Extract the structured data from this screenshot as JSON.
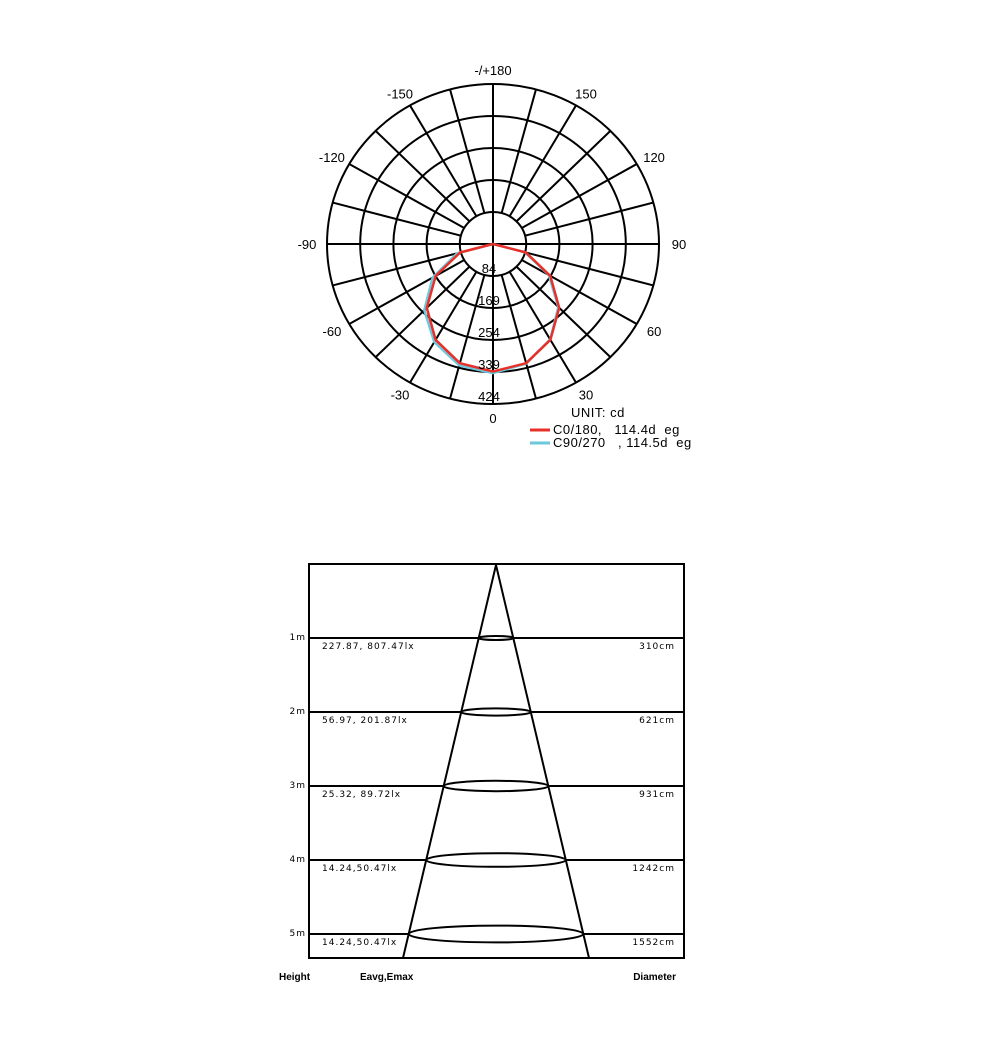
{
  "chart_data": [
    {
      "type": "polar",
      "unit_label": "UNIT:  cd",
      "angle_labels": [
        "-/+180",
        "150",
        "120",
        "90",
        "60",
        "30",
        "0",
        "-30",
        "-60",
        "-90",
        "-120",
        "-150"
      ],
      "angle_values": [
        180,
        150,
        120,
        90,
        60,
        30,
        0,
        -30,
        -60,
        -90,
        -120,
        -150
      ],
      "radial_ticks": [
        "84",
        "169",
        "254",
        "339",
        "424"
      ],
      "radial_values": [
        84,
        169,
        254,
        339,
        424
      ],
      "rmax": 424,
      "spoke_step_deg": 15,
      "series": [
        {
          "name": "C0/180,   114.4d  eg",
          "color": "#e8302a",
          "angles": [
            -90,
            -75,
            -60,
            -45,
            -30,
            -15,
            0,
            15,
            30,
            45,
            60,
            75,
            90
          ],
          "values": [
            0,
            87,
            169,
            239,
            293,
            327,
            338,
            327,
            293,
            239,
            169,
            87,
            0
          ]
        },
        {
          "name": "C90/270   , 114.5d  eg",
          "color": "#6cc8dc",
          "angles": [
            -90,
            -75,
            -60,
            -45,
            -30,
            -15,
            0,
            15,
            30,
            45,
            60,
            75,
            90
          ],
          "values": [
            0,
            95,
            178,
            248,
            300,
            333,
            342,
            328,
            292,
            236,
            165,
            84,
            0
          ]
        }
      ]
    },
    {
      "type": "table",
      "columns": [
        "Height",
        "Eavg,Emax",
        "Diameter"
      ],
      "rows": [
        {
          "height": "1m",
          "illum": "227.87, 807.47lx",
          "diameter": "310cm"
        },
        {
          "height": "2m",
          "illum": "56.97, 201.87lx",
          "diameter": "621cm"
        },
        {
          "height": "3m",
          "illum": "25.32, 89.72lx",
          "diameter": "931cm"
        },
        {
          "height": "4m",
          "illum": "14.24,50.47lx",
          "diameter": "1242cm"
        },
        {
          "height": "5m",
          "illum": "14.24,50.47lx",
          "diameter": "1552cm"
        }
      ]
    }
  ]
}
